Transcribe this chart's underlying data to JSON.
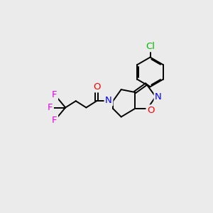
{
  "background_color": "#ebebeb",
  "bond_color": "#000000",
  "atom_colors": {
    "O_carbonyl": "#ff0000",
    "O_ring": "#ff0000",
    "N": "#0000ff",
    "F": "#ee00ee",
    "Cl": "#00bb00",
    "C": "#000000"
  },
  "figsize": [
    3.0,
    3.0
  ],
  "dpi": 100,
  "lw": 1.4,
  "fontsize": 9.5
}
